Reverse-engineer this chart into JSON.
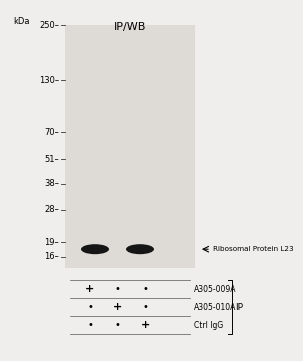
{
  "title": "IP/WB",
  "fig_bg": "#f0eeec",
  "blot_bg": "#e8e4e0",
  "band_color": "#151515",
  "text_color": "#1a1a1a",
  "kda_label": "kDa",
  "mw_markers": [
    250,
    130,
    70,
    51,
    38,
    28,
    19,
    16
  ],
  "table_rows": [
    "A305-009A",
    "A305-010A",
    "Ctrl IgG"
  ],
  "table_data": [
    [
      "+",
      "•",
      "•"
    ],
    [
      "•",
      "+",
      "•"
    ],
    [
      "•",
      "•",
      "+"
    ]
  ],
  "ip_label": "IP",
  "arrow_label": "← Ribosomal Protein L23"
}
